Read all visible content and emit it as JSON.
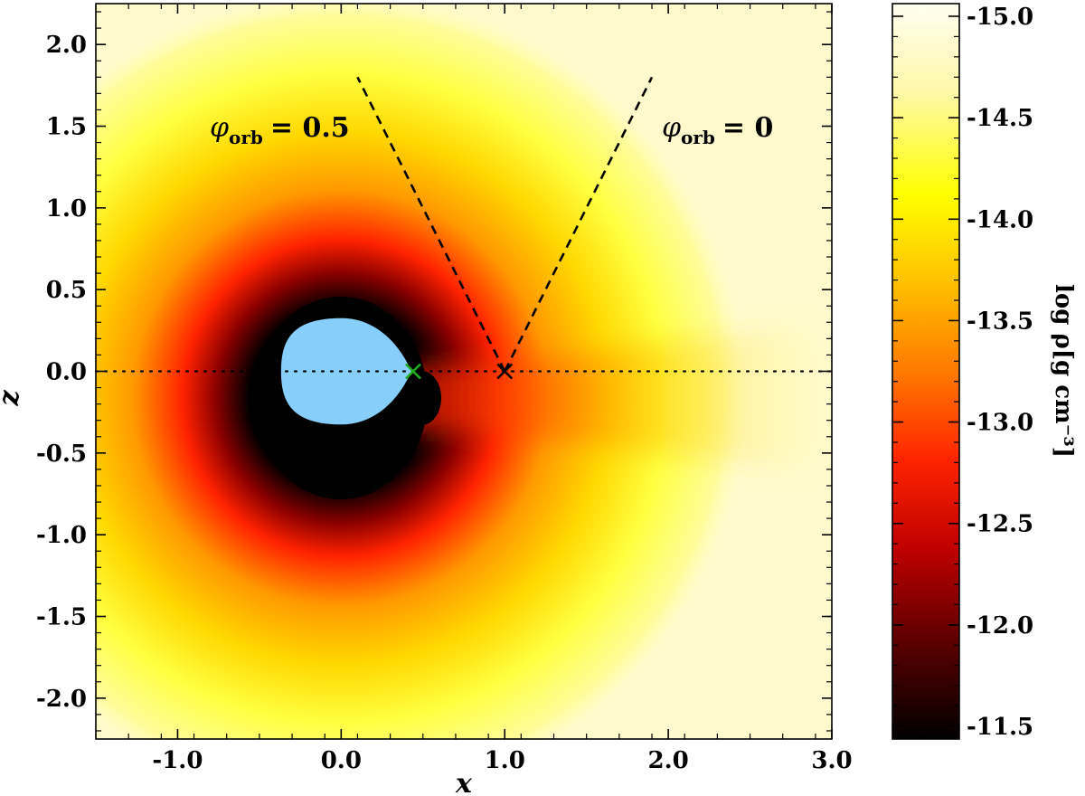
{
  "chart_data": {
    "type": "heatmap",
    "title": "",
    "xlabel": "x",
    "ylabel": "z",
    "xlim": [
      -1.5,
      3.0
    ],
    "ylim": [
      -2.25,
      2.25
    ],
    "x_ticks": [
      -1.0,
      0.0,
      1.0,
      2.0,
      3.0
    ],
    "x_tick_labels": [
      "-1.0",
      "0.0",
      "1.0",
      "2.0",
      "3.0"
    ],
    "y_ticks": [
      -2.0,
      -1.5,
      -1.0,
      -0.5,
      0.0,
      0.5,
      1.0,
      1.5,
      2.0
    ],
    "y_tick_labels": [
      "-2.0",
      "-1.5",
      "-1.0",
      "-0.5",
      "0.0",
      "0.5",
      "1.0",
      "1.5",
      "2.0"
    ],
    "colorbar": {
      "label": "log ρ[g cm⁻³]",
      "range": [
        -11.5,
        -15.0
      ],
      "ticks": [
        -15.0,
        -14.5,
        -14.0,
        -13.5,
        -13.0,
        -12.5,
        -12.0,
        -11.5
      ],
      "tick_labels": [
        "-15.0",
        "-14.5",
        "-14.0",
        "-13.5",
        "-13.0",
        "-12.5",
        "-12.0",
        "-11.5"
      ],
      "colormap": "hot"
    },
    "annotations": [
      {
        "symbol": "φ",
        "subscript": "orb",
        "value": "= 0.5"
      },
      {
        "symbol": "φ",
        "subscript": "orb",
        "value": "= 0"
      }
    ],
    "lines": [
      {
        "name": "sight line 0.5",
        "style": "dashed",
        "points": [
          [
            1.0,
            0.0
          ],
          [
            0.1,
            1.8
          ]
        ]
      },
      {
        "name": "sight line 0",
        "style": "dashed",
        "points": [
          [
            1.0,
            0.0
          ],
          [
            1.9,
            1.8
          ]
        ]
      },
      {
        "name": "orbital plane",
        "style": "dotted",
        "points": [
          [
            -1.5,
            0.0
          ],
          [
            3.0,
            0.0
          ]
        ]
      }
    ],
    "markers": [
      {
        "name": "L1 point",
        "x": 0.44,
        "y": 0.0,
        "shape": "x",
        "color": "#22aa22"
      },
      {
        "name": "companion",
        "x": 1.0,
        "y": 0.0,
        "shape": "x",
        "color": "#000000"
      }
    ],
    "star": {
      "fill": "#87cefa",
      "center": [
        0.0,
        0.0
      ],
      "radius": 0.35
    }
  }
}
